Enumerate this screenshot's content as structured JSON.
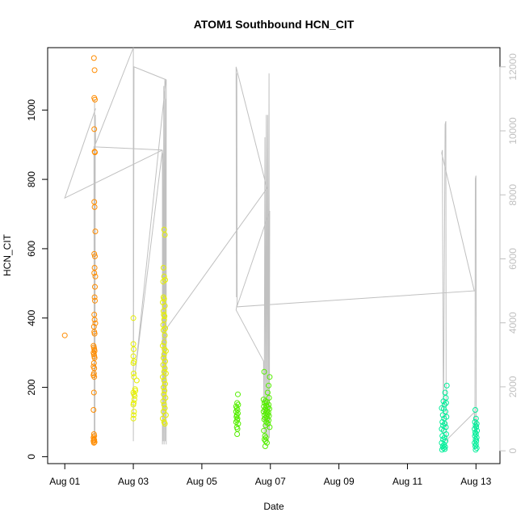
{
  "chart_data": {
    "type": "scatter",
    "title": "ATOM1 Southbound HCN_CIT",
    "xlabel": "Date",
    "ylabel": "HCN_CIT",
    "x_unit": "day of August",
    "xlim": [
      0.5,
      13.7
    ],
    "ylim": [
      -20,
      1180
    ],
    "y2lim": [
      -400,
      12600
    ],
    "x_ticks": [
      1,
      3,
      5,
      7,
      9,
      11,
      13
    ],
    "x_tick_labels": [
      "Aug 01",
      "Aug 03",
      "Aug 05",
      "Aug 07",
      "Aug 09",
      "Aug 11",
      "Aug 13"
    ],
    "y_ticks": [
      0,
      200,
      400,
      600,
      800,
      1000
    ],
    "y2_ticks": [
      0,
      2000,
      4000,
      6000,
      8000,
      10000,
      12000
    ],
    "grid": false,
    "legend": "none",
    "colors": {
      "line": "#c0c0c0",
      "flight1": "#ff8c00",
      "flight2": "#e6f000",
      "flight3": "#55ee00",
      "flight4": "#00ee99"
    },
    "point_groups": [
      {
        "color_key": "flight1",
        "points": [
          [
            1.0,
            350
          ],
          [
            1.85,
            1150
          ],
          [
            1.87,
            1115
          ],
          [
            1.86,
            1035
          ],
          [
            1.88,
            1030
          ],
          [
            1.86,
            945
          ],
          [
            1.87,
            880
          ],
          [
            1.88,
            878
          ],
          [
            1.86,
            735
          ],
          [
            1.87,
            720
          ],
          [
            1.89,
            650
          ],
          [
            1.86,
            585
          ],
          [
            1.88,
            578
          ],
          [
            1.87,
            545
          ],
          [
            1.86,
            530
          ],
          [
            1.89,
            520
          ],
          [
            1.88,
            490
          ],
          [
            1.87,
            460
          ],
          [
            1.88,
            450
          ],
          [
            1.86,
            410
          ],
          [
            1.87,
            395
          ],
          [
            1.89,
            385
          ],
          [
            1.85,
            375
          ],
          [
            1.86,
            360
          ],
          [
            1.87,
            355
          ],
          [
            1.84,
            320
          ],
          [
            1.85,
            315
          ],
          [
            1.86,
            310
          ],
          [
            1.87,
            305
          ],
          [
            1.84,
            300
          ],
          [
            1.85,
            295
          ],
          [
            1.86,
            290
          ],
          [
            1.87,
            285
          ],
          [
            1.85,
            270
          ],
          [
            1.84,
            260
          ],
          [
            1.86,
            255
          ],
          [
            1.85,
            240
          ],
          [
            1.84,
            235
          ],
          [
            1.86,
            230
          ],
          [
            1.85,
            185
          ],
          [
            1.84,
            135
          ],
          [
            1.85,
            65
          ],
          [
            1.86,
            60
          ],
          [
            1.84,
            55
          ],
          [
            1.85,
            50
          ],
          [
            1.86,
            48
          ],
          [
            1.84,
            45
          ],
          [
            1.87,
            42
          ],
          [
            1.85,
            40
          ]
        ]
      },
      {
        "color_key": "flight2",
        "points": [
          [
            3.0,
            400
          ],
          [
            3.0,
            325
          ],
          [
            3.01,
            310
          ],
          [
            3.0,
            290
          ],
          [
            3.02,
            275
          ],
          [
            3.0,
            270
          ],
          [
            3.01,
            240
          ],
          [
            3.02,
            230
          ],
          [
            3.1,
            220
          ],
          [
            3.05,
            195
          ],
          [
            3.06,
            190
          ],
          [
            3.0,
            185
          ],
          [
            3.02,
            180
          ],
          [
            3.04,
            175
          ],
          [
            3.03,
            165
          ],
          [
            3.01,
            155
          ],
          [
            3.0,
            150
          ],
          [
            3.02,
            130
          ],
          [
            3.01,
            120
          ],
          [
            3.0,
            110
          ],
          [
            3.9,
            655
          ],
          [
            3.92,
            640
          ],
          [
            3.88,
            545
          ],
          [
            3.9,
            520
          ],
          [
            3.93,
            510
          ],
          [
            3.87,
            505
          ],
          [
            3.88,
            460
          ],
          [
            3.9,
            455
          ],
          [
            3.86,
            445
          ],
          [
            3.92,
            435
          ],
          [
            3.88,
            420
          ],
          [
            3.89,
            410
          ],
          [
            3.91,
            405
          ],
          [
            3.9,
            395
          ],
          [
            3.87,
            380
          ],
          [
            3.93,
            370
          ],
          [
            3.88,
            365
          ],
          [
            3.92,
            350
          ],
          [
            3.9,
            330
          ],
          [
            3.86,
            320
          ],
          [
            3.91,
            310
          ],
          [
            3.95,
            305
          ],
          [
            3.9,
            295
          ],
          [
            3.88,
            285
          ],
          [
            3.93,
            275
          ],
          [
            3.87,
            265
          ],
          [
            3.92,
            255
          ],
          [
            3.9,
            245
          ],
          [
            3.95,
            240
          ],
          [
            3.86,
            230
          ],
          [
            3.9,
            220
          ],
          [
            3.93,
            210
          ],
          [
            3.88,
            200
          ],
          [
            3.91,
            190
          ],
          [
            3.89,
            180
          ],
          [
            3.94,
            170
          ],
          [
            3.87,
            160
          ],
          [
            3.9,
            150
          ],
          [
            3.92,
            140
          ],
          [
            3.88,
            130
          ],
          [
            3.95,
            120
          ],
          [
            3.86,
            110
          ],
          [
            3.9,
            100
          ],
          [
            3.92,
            95
          ]
        ]
      },
      {
        "color_key": "flight3",
        "points": [
          [
            6.05,
            180
          ],
          [
            6.03,
            155
          ],
          [
            6.06,
            150
          ],
          [
            6.0,
            145
          ],
          [
            6.02,
            140
          ],
          [
            6.04,
            135
          ],
          [
            6.0,
            130
          ],
          [
            6.05,
            125
          ],
          [
            6.02,
            120
          ],
          [
            6.01,
            115
          ],
          [
            6.04,
            110
          ],
          [
            6.03,
            105
          ],
          [
            6.0,
            100
          ],
          [
            6.06,
            95
          ],
          [
            6.02,
            85
          ],
          [
            6.04,
            80
          ],
          [
            6.03,
            65
          ],
          [
            6.82,
            245
          ],
          [
            6.98,
            230
          ],
          [
            6.95,
            205
          ],
          [
            6.92,
            185
          ],
          [
            6.96,
            170
          ],
          [
            6.8,
            165
          ],
          [
            6.85,
            160
          ],
          [
            6.9,
            158
          ],
          [
            6.83,
            155
          ],
          [
            6.95,
            150
          ],
          [
            6.88,
            148
          ],
          [
            6.81,
            145
          ],
          [
            6.93,
            142
          ],
          [
            6.86,
            140
          ],
          [
            6.97,
            138
          ],
          [
            6.84,
            135
          ],
          [
            6.9,
            132
          ],
          [
            6.8,
            130
          ],
          [
            6.94,
            128
          ],
          [
            6.87,
            125
          ],
          [
            6.92,
            122
          ],
          [
            6.83,
            120
          ],
          [
            6.96,
            118
          ],
          [
            6.89,
            115
          ],
          [
            6.85,
            112
          ],
          [
            6.91,
            110
          ],
          [
            6.82,
            108
          ],
          [
            6.95,
            105
          ],
          [
            6.88,
            100
          ],
          [
            6.93,
            95
          ],
          [
            6.86,
            90
          ],
          [
            6.98,
            85
          ],
          [
            6.81,
            75
          ],
          [
            6.84,
            60
          ],
          [
            6.87,
            55
          ],
          [
            6.83,
            50
          ],
          [
            6.86,
            45
          ],
          [
            6.9,
            40
          ],
          [
            6.85,
            30
          ]
        ]
      },
      {
        "color_key": "flight4",
        "points": [
          [
            12.15,
            205
          ],
          [
            12.1,
            185
          ],
          [
            12.12,
            170
          ],
          [
            12.05,
            160
          ],
          [
            12.13,
            155
          ],
          [
            12.08,
            150
          ],
          [
            12.0,
            140
          ],
          [
            12.06,
            138
          ],
          [
            12.11,
            130
          ],
          [
            12.03,
            120
          ],
          [
            12.14,
            115
          ],
          [
            12.07,
            110
          ],
          [
            12.02,
            100
          ],
          [
            12.09,
            95
          ],
          [
            12.04,
            90
          ],
          [
            12.12,
            85
          ],
          [
            12.0,
            80
          ],
          [
            12.06,
            75
          ],
          [
            12.13,
            65
          ],
          [
            12.02,
            60
          ],
          [
            12.08,
            55
          ],
          [
            12.04,
            50
          ],
          [
            12.11,
            45
          ],
          [
            12.0,
            40
          ],
          [
            12.07,
            35
          ],
          [
            12.03,
            30
          ],
          [
            12.1,
            28
          ],
          [
            12.05,
            25
          ],
          [
            12.09,
            22
          ],
          [
            12.01,
            20
          ],
          [
            12.98,
            135
          ],
          [
            13.0,
            110
          ],
          [
            12.97,
            100
          ],
          [
            13.02,
            95
          ],
          [
            12.99,
            90
          ],
          [
            13.01,
            85
          ],
          [
            12.96,
            80
          ],
          [
            13.03,
            75
          ],
          [
            12.98,
            70
          ],
          [
            13.0,
            65
          ],
          [
            12.97,
            60
          ],
          [
            13.02,
            55
          ],
          [
            12.99,
            50
          ],
          [
            13.01,
            45
          ],
          [
            12.96,
            40
          ],
          [
            13.0,
            35
          ],
          [
            12.98,
            30
          ],
          [
            13.02,
            25
          ],
          [
            12.99,
            20
          ]
        ]
      }
    ],
    "altitude_track": [
      [
        1.0,
        7900
      ],
      [
        1.9,
        10700
      ],
      [
        1.0,
        7900
      ],
      [
        3.85,
        9400
      ],
      [
        1.85,
        9500
      ],
      [
        1.86,
        500
      ],
      [
        1.87,
        11000
      ],
      [
        1.88,
        300
      ],
      [
        1.89,
        10500
      ],
      [
        1.9,
        9600
      ],
      [
        3.0,
        12600
      ],
      [
        3.0,
        300
      ],
      [
        3.02,
        12000
      ],
      [
        3.95,
        11600
      ],
      [
        3.05,
        2400
      ],
      [
        3.85,
        9400
      ],
      [
        3.85,
        200
      ],
      [
        3.86,
        9300
      ],
      [
        3.87,
        300
      ],
      [
        3.89,
        11400
      ],
      [
        3.9,
        200
      ],
      [
        3.92,
        11600
      ],
      [
        3.93,
        300
      ],
      [
        3.95,
        11000
      ],
      [
        3.96,
        200
      ],
      [
        3.96,
        11600
      ],
      [
        3.95,
        3800
      ],
      [
        6.9,
        8200
      ],
      [
        6.0,
        12000
      ],
      [
        6.01,
        4800
      ],
      [
        6.02,
        11800
      ],
      [
        6.03,
        4600
      ],
      [
        6.0,
        4400
      ],
      [
        6.8,
        2800
      ],
      [
        6.82,
        500
      ],
      [
        6.84,
        9800
      ],
      [
        6.86,
        400
      ],
      [
        6.88,
        10500
      ],
      [
        6.9,
        300
      ],
      [
        6.92,
        10500
      ],
      [
        6.94,
        300
      ],
      [
        6.96,
        11800
      ],
      [
        6.97,
        400
      ],
      [
        6.98,
        7500
      ],
      [
        6.02,
        4500
      ],
      [
        12.95,
        5000
      ],
      [
        12.0,
        9300
      ],
      [
        12.02,
        9400
      ],
      [
        12.05,
        500
      ],
      [
        12.1,
        10200
      ],
      [
        12.12,
        10300
      ],
      [
        12.13,
        400
      ],
      [
        12.15,
        300
      ],
      [
        12.2,
        400
      ],
      [
        12.95,
        1200
      ],
      [
        12.97,
        600
      ],
      [
        12.98,
        8500
      ],
      [
        13.0,
        8600
      ],
      [
        13.01,
        500
      ],
      [
        13.02,
        1000
      ]
    ]
  }
}
